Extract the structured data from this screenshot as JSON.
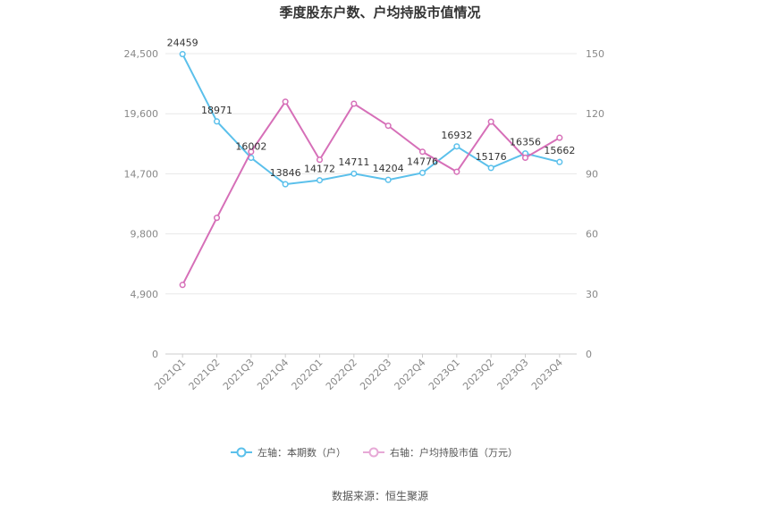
{
  "chart_data": {
    "type": "line",
    "title": "季度股东户数、户均持股市值情况",
    "categories": [
      "2021Q1",
      "2021Q2",
      "2021Q3",
      "2021Q4",
      "2022Q1",
      "2022Q2",
      "2022Q3",
      "2022Q4",
      "2023Q1",
      "2023Q2",
      "2023Q3",
      "2023Q4"
    ],
    "left_axis": {
      "min": 0,
      "max": 24500,
      "ticks": [
        0,
        4900,
        9800,
        14700,
        19600,
        24500
      ],
      "tick_labels": [
        "0",
        "4,900",
        "9,800",
        "14,700",
        "19,600",
        "24,500"
      ]
    },
    "right_axis": {
      "min": 0,
      "max": 150,
      "ticks": [
        0,
        30,
        60,
        90,
        120,
        150
      ],
      "tick_labels": [
        "0",
        "30",
        "60",
        "90",
        "120",
        "150"
      ]
    },
    "series": [
      {
        "name": "左轴：本期数（户）",
        "axis": "left",
        "color": "#5BC0EB",
        "values": [
          24459,
          18971,
          16002,
          13846,
          14172,
          14711,
          14204,
          14776,
          16932,
          15176,
          16356,
          15662
        ],
        "labels": [
          "24459",
          "18971",
          "16002",
          "13846",
          "14172",
          "14711",
          "14204",
          "14776",
          "16932",
          "15176",
          "16356",
          "15662"
        ]
      },
      {
        "name": "右轴：户均持股市值（万元）",
        "axis": "right",
        "color": "#D66FB8",
        "values": [
          34.5,
          68,
          101,
          126,
          97,
          125,
          114,
          101,
          91,
          116,
          98,
          108
        ]
      }
    ],
    "grid": true,
    "legend_position": "bottom"
  },
  "source": "数据来源：恒生聚源"
}
